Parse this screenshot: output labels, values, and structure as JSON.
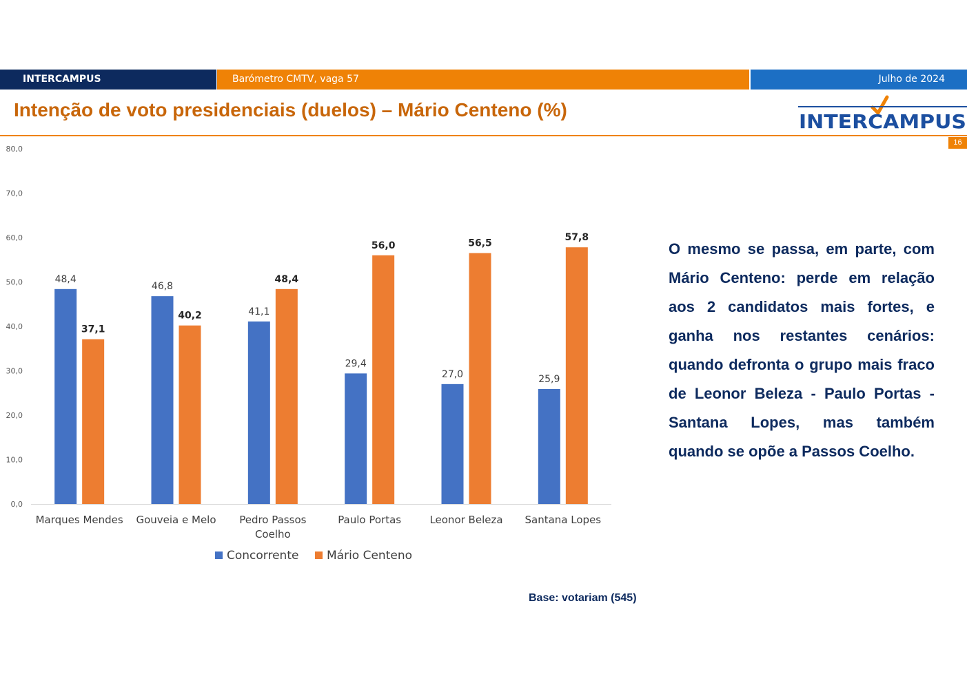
{
  "header": {
    "brand": "INTERCAMPUS",
    "survey": "Barómetro CMTV, vaga 57",
    "date": "Julho de 2024"
  },
  "title": "Intenção de voto presidenciais (duelos) – Mário Centeno (%)",
  "logo": {
    "text": "INTERCAMPUS",
    "icon": "checkmark-icon",
    "color": "#1c4fa0",
    "check_color": "#ef8206"
  },
  "page_number": "16",
  "description": "O mesmo se passa, em parte, com Mário Centeno: perde em relação aos 2 candidatos mais fortes, e ganha nos restantes cenários: quando defronta o grupo mais fraco de Leonor Beleza - Paulo Portas - Santana Lopes, mas também quando se opõe a Passos Coelho.",
  "base_note": "Base: votariam (545)",
  "chart_data": {
    "type": "bar",
    "title": "",
    "xlabel": "",
    "ylabel": "",
    "ylim": [
      0,
      80
    ],
    "yticks": [
      "0,0",
      "10,0",
      "20,0",
      "30,0",
      "40,0",
      "50,0",
      "60,0",
      "70,0",
      "80,0"
    ],
    "grid": false,
    "legend_position": "bottom",
    "categories": [
      [
        "Marques Mendes"
      ],
      [
        "Gouveia e Melo"
      ],
      [
        "Pedro Passos",
        "Coelho"
      ],
      [
        "Paulo Portas"
      ],
      [
        "Leonor Beleza"
      ],
      [
        "Santana Lopes"
      ]
    ],
    "series": [
      {
        "name": "Concorrente",
        "color": "#4472c4",
        "values": [
          48.4,
          46.8,
          41.1,
          29.4,
          27.0,
          25.9
        ],
        "labels": [
          "48,4",
          "46,8",
          "41,1",
          "29,4",
          "27,0",
          "25,9"
        ]
      },
      {
        "name": "Mário Centeno",
        "color": "#ed7d31",
        "values": [
          37.1,
          40.2,
          48.4,
          56.0,
          56.5,
          57.8
        ],
        "labels": [
          "37,1",
          "40,2",
          "48,4",
          "56,0",
          "56,5",
          "57,8"
        ]
      }
    ]
  }
}
